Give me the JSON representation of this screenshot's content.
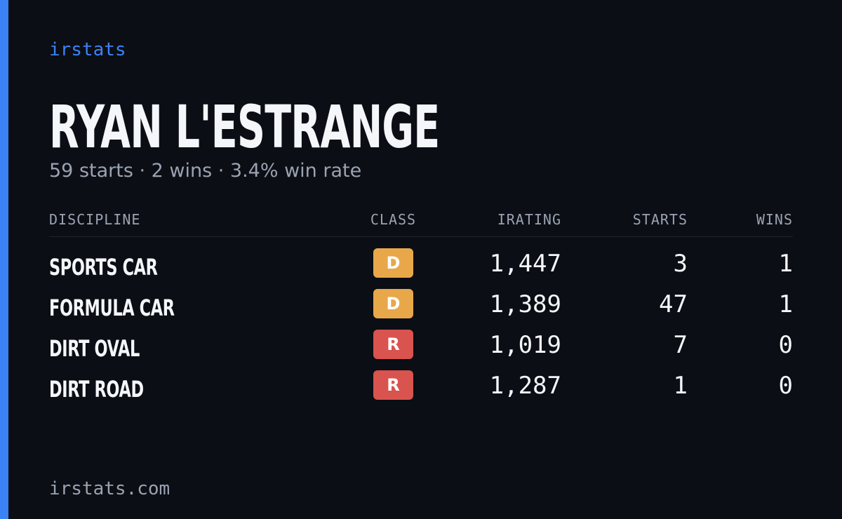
{
  "header": {
    "brand": "irstats",
    "name": "RYAN L'ESTRANGE",
    "subtitle": "59 starts · 2 wins · 3.4% win rate"
  },
  "table": {
    "columns": [
      "DISCIPLINE",
      "CLASS",
      "IRATING",
      "STARTS",
      "WINS"
    ],
    "rows": [
      [
        "SPORTS CAR",
        "D",
        "1,447",
        "3",
        "1"
      ],
      [
        "FORMULA CAR",
        "D",
        "1,389",
        "47",
        "1"
      ],
      [
        "DIRT OVAL",
        "R",
        "1,019",
        "7",
        "0"
      ],
      [
        "DIRT ROAD",
        "R",
        "1,287",
        "1",
        "0"
      ]
    ]
  },
  "footer": "irstats.com"
}
